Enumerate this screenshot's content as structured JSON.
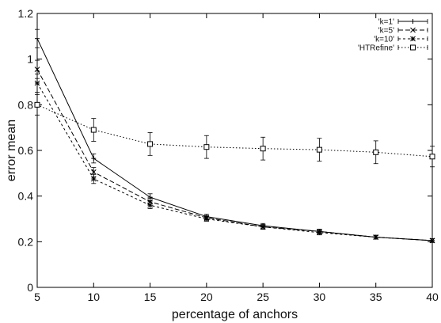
{
  "chart_data": {
    "type": "line",
    "xlabel": "percentage of anchors",
    "ylabel": "error mean",
    "xlim": [
      5,
      40
    ],
    "ylim": [
      0,
      1.2
    ],
    "xticks": [
      5,
      10,
      15,
      20,
      25,
      30,
      35,
      40
    ],
    "yticks": [
      0,
      0.2,
      0.4,
      0.6,
      0.8,
      1,
      1.2
    ],
    "xtick_labels": [
      "5",
      "10",
      "15",
      "20",
      "25",
      "30",
      "35",
      "40"
    ],
    "ytick_labels": [
      "0",
      "0.2",
      "0.4",
      "0.6",
      "0.8",
      "1",
      "1.2"
    ],
    "legend_position": "top-right",
    "grid": false,
    "x": [
      5,
      10,
      15,
      20,
      25,
      30,
      35,
      40
    ],
    "series": [
      {
        "name": "'k=1'",
        "marker": "plus",
        "dash": "solid",
        "values": [
          1.09,
          0.565,
          0.395,
          0.31,
          0.27,
          0.245,
          0.22,
          0.205
        ],
        "errors": [
          0.04,
          0.02,
          0.015,
          0.01,
          0.01,
          0.01,
          0.008,
          0.008
        ]
      },
      {
        "name": "'k=5'",
        "marker": "x",
        "dash": "dashed",
        "values": [
          0.955,
          0.505,
          0.375,
          0.305,
          0.265,
          0.245,
          0.22,
          0.205
        ],
        "errors": [
          0.04,
          0.02,
          0.015,
          0.01,
          0.01,
          0.01,
          0.008,
          0.008
        ]
      },
      {
        "name": "'k=10'",
        "marker": "star",
        "dash": "dotted",
        "values": [
          0.895,
          0.475,
          0.36,
          0.3,
          0.265,
          0.24,
          0.22,
          0.205
        ],
        "errors": [
          0.04,
          0.02,
          0.015,
          0.01,
          0.01,
          0.01,
          0.008,
          0.008
        ]
      },
      {
        "name": "'HTRefine'",
        "marker": "square",
        "dash": "fine-dotted",
        "values": [
          0.8,
          0.69,
          0.628,
          0.615,
          0.608,
          0.603,
          0.592,
          0.573
        ],
        "errors": [
          0.045,
          0.05,
          0.05,
          0.05,
          0.05,
          0.05,
          0.05,
          0.045
        ]
      }
    ]
  }
}
